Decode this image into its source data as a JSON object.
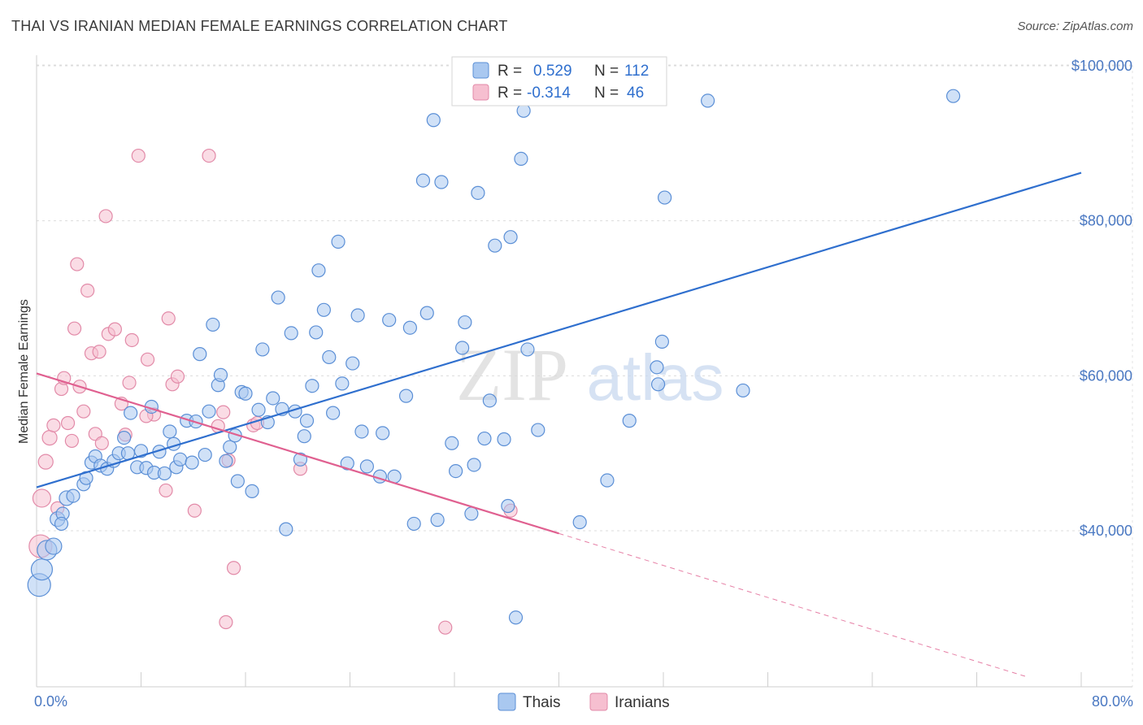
{
  "title": "THAI VS IRANIAN MEDIAN FEMALE EARNINGS CORRELATION CHART",
  "source": "Source: ZipAtlas.com",
  "watermark": {
    "part1": "ZIP",
    "part2": "atlas"
  },
  "colors": {
    "thai_fill": "#a9c8f0",
    "thai_stroke": "#5b8fd6",
    "thai_line": "#2f6fce",
    "iran_fill": "#f6bfd0",
    "iran_stroke": "#e28aa8",
    "iran_line": "#e06090",
    "axis_text": "#4a78c2"
  },
  "legend": {
    "rows": [
      {
        "r_label": "R =",
        "r_value": "0.529",
        "n_label": "N =",
        "n_value": "112",
        "series": "thai"
      },
      {
        "r_label": "R =",
        "r_value": "-0.314",
        "n_label": "N =",
        "n_value": "46",
        "series": "iran"
      }
    ]
  },
  "bottom_legend": {
    "thai": "Thais",
    "iran": "Iranians"
  },
  "chart_data": {
    "type": "scatter",
    "ylabel": "Median Female Earnings",
    "xlabel": "",
    "x_range": [
      0,
      80
    ],
    "y_range": [
      18000,
      103000
    ],
    "x_ticks": [
      {
        "value": 0,
        "label": "0.0%"
      },
      {
        "value": 80,
        "label": "80.0%"
      }
    ],
    "y_ticks": [
      {
        "value": 40000,
        "label": "$40,000"
      },
      {
        "value": 60000,
        "label": "$60,000"
      },
      {
        "value": 80000,
        "label": "$80,000"
      },
      {
        "value": 100000,
        "label": "$100,000"
      }
    ],
    "series": [
      {
        "name": "Thais",
        "key": "thai",
        "points": [
          [
            0.2,
            33000,
            14
          ],
          [
            0.4,
            35000,
            13
          ],
          [
            0.8,
            37500,
            12
          ],
          [
            1.3,
            38000,
            10
          ],
          [
            1.6,
            41500,
            9
          ],
          [
            2.0,
            42200,
            8
          ],
          [
            2.3,
            44200,
            9
          ],
          [
            2.8,
            44500,
            8
          ],
          [
            3.6,
            46000,
            8
          ],
          [
            3.8,
            46800,
            8
          ],
          [
            4.2,
            48800,
            8
          ],
          [
            4.5,
            49600,
            8
          ],
          [
            4.9,
            48400,
            8
          ],
          [
            5.4,
            48000,
            8
          ],
          [
            5.9,
            49000,
            8
          ],
          [
            6.3,
            50000,
            8
          ],
          [
            6.7,
            52000,
            8
          ],
          [
            7.0,
            50000,
            8
          ],
          [
            7.2,
            55200,
            8
          ],
          [
            7.7,
            48200,
            8
          ],
          [
            8.0,
            50300,
            8
          ],
          [
            8.4,
            48100,
            8
          ],
          [
            8.8,
            56000,
            8
          ],
          [
            9.0,
            47500,
            8
          ],
          [
            9.4,
            50200,
            8
          ],
          [
            9.8,
            47400,
            8
          ],
          [
            10.2,
            52800,
            8
          ],
          [
            10.5,
            51200,
            8
          ],
          [
            10.7,
            48200,
            8
          ],
          [
            11.0,
            49200,
            8
          ],
          [
            11.5,
            54200,
            8
          ],
          [
            11.9,
            48800,
            8
          ],
          [
            12.2,
            54100,
            8
          ],
          [
            12.5,
            62800,
            8
          ],
          [
            12.9,
            49800,
            8
          ],
          [
            13.2,
            55400,
            8
          ],
          [
            13.5,
            66600,
            8
          ],
          [
            13.9,
            58800,
            8
          ],
          [
            14.1,
            60100,
            8
          ],
          [
            14.5,
            49000,
            8
          ],
          [
            14.8,
            50800,
            8
          ],
          [
            15.2,
            52300,
            8
          ],
          [
            15.4,
            46400,
            8
          ],
          [
            15.7,
            57900,
            8
          ],
          [
            16.0,
            57700,
            8
          ],
          [
            16.5,
            45100,
            8
          ],
          [
            17.0,
            55600,
            8
          ],
          [
            17.3,
            63400,
            8
          ],
          [
            17.7,
            54000,
            8
          ],
          [
            18.1,
            57100,
            8
          ],
          [
            18.5,
            70100,
            8
          ],
          [
            18.8,
            55700,
            8
          ],
          [
            19.1,
            40200,
            8
          ],
          [
            19.5,
            65500,
            8
          ],
          [
            19.8,
            55400,
            8
          ],
          [
            20.2,
            49200,
            8
          ],
          [
            20.5,
            52200,
            8
          ],
          [
            20.7,
            54200,
            8
          ],
          [
            21.1,
            58700,
            8
          ],
          [
            21.4,
            65600,
            8
          ],
          [
            21.6,
            73600,
            8
          ],
          [
            22.0,
            68500,
            8
          ],
          [
            22.4,
            62400,
            8
          ],
          [
            22.7,
            55200,
            8
          ],
          [
            23.1,
            77300,
            8
          ],
          [
            23.4,
            59000,
            8
          ],
          [
            23.8,
            48700,
            8
          ],
          [
            24.2,
            61600,
            8
          ],
          [
            24.6,
            67800,
            8
          ],
          [
            24.9,
            52800,
            8
          ],
          [
            25.3,
            48300,
            8
          ],
          [
            26.3,
            47000,
            8
          ],
          [
            26.5,
            52600,
            8
          ],
          [
            27.0,
            67200,
            8
          ],
          [
            27.4,
            47000,
            8
          ],
          [
            28.3,
            57400,
            8
          ],
          [
            28.6,
            66200,
            8
          ],
          [
            28.9,
            40900,
            8
          ],
          [
            29.6,
            85200,
            8
          ],
          [
            29.9,
            68100,
            8
          ],
          [
            30.4,
            93000,
            8
          ],
          [
            30.7,
            41400,
            8
          ],
          [
            31.0,
            85000,
            8
          ],
          [
            31.8,
            51300,
            8
          ],
          [
            32.1,
            47700,
            8
          ],
          [
            32.6,
            63600,
            8
          ],
          [
            32.8,
            66900,
            8
          ],
          [
            33.3,
            42200,
            8
          ],
          [
            33.5,
            48500,
            8
          ],
          [
            33.8,
            83600,
            8
          ],
          [
            34.3,
            51900,
            8
          ],
          [
            34.7,
            56800,
            8
          ],
          [
            35.1,
            76800,
            8
          ],
          [
            35.8,
            51800,
            8
          ],
          [
            36.1,
            43200,
            8
          ],
          [
            36.3,
            77900,
            8
          ],
          [
            36.7,
            28800,
            8
          ],
          [
            37.1,
            88000,
            8
          ],
          [
            37.3,
            94200,
            8
          ],
          [
            37.6,
            63400,
            8
          ],
          [
            38.4,
            53000,
            8
          ],
          [
            41.6,
            41100,
            8
          ],
          [
            43.7,
            46500,
            8
          ],
          [
            45.4,
            54200,
            8
          ],
          [
            47.5,
            61100,
            8
          ],
          [
            47.9,
            64400,
            8
          ],
          [
            47.6,
            58900,
            8
          ],
          [
            48.1,
            83000,
            8
          ],
          [
            51.4,
            95500,
            8
          ],
          [
            54.1,
            58100,
            8
          ],
          [
            70.2,
            96100,
            8
          ],
          [
            1.9,
            40900,
            8
          ]
        ],
        "trend": {
          "x0": 0,
          "y0": 45600,
          "x1": 80,
          "y1": 86200,
          "dashed_from": null
        }
      },
      {
        "name": "Iranians",
        "key": "iran",
        "points": [
          [
            0.3,
            38000,
            14
          ],
          [
            0.4,
            44200,
            11
          ],
          [
            0.7,
            48900,
            9
          ],
          [
            1.0,
            52000,
            9
          ],
          [
            1.3,
            53600,
            8
          ],
          [
            1.6,
            42900,
            8
          ],
          [
            1.9,
            58300,
            8
          ],
          [
            2.1,
            59700,
            8
          ],
          [
            2.4,
            53900,
            8
          ],
          [
            2.7,
            51600,
            8
          ],
          [
            2.9,
            66100,
            8
          ],
          [
            3.1,
            74400,
            8
          ],
          [
            3.3,
            58600,
            8
          ],
          [
            3.6,
            55400,
            8
          ],
          [
            3.9,
            71000,
            8
          ],
          [
            4.2,
            62900,
            8
          ],
          [
            4.5,
            52500,
            8
          ],
          [
            4.8,
            63100,
            8
          ],
          [
            5.0,
            51300,
            8
          ],
          [
            5.3,
            80600,
            8
          ],
          [
            5.5,
            65400,
            8
          ],
          [
            6.0,
            66000,
            8
          ],
          [
            6.5,
            56400,
            8
          ],
          [
            6.8,
            52400,
            8
          ],
          [
            7.1,
            59100,
            8
          ],
          [
            7.3,
            64600,
            8
          ],
          [
            7.8,
            88400,
            8
          ],
          [
            8.5,
            62100,
            8
          ],
          [
            9.0,
            55000,
            8
          ],
          [
            9.9,
            45200,
            8
          ],
          [
            10.1,
            67400,
            8
          ],
          [
            10.4,
            58900,
            8
          ],
          [
            10.8,
            59900,
            8
          ],
          [
            12.1,
            42600,
            8
          ],
          [
            13.2,
            88400,
            8
          ],
          [
            13.9,
            53500,
            8
          ],
          [
            14.3,
            55300,
            8
          ],
          [
            14.5,
            28200,
            8
          ],
          [
            14.7,
            49100,
            8
          ],
          [
            15.1,
            35200,
            8
          ],
          [
            16.6,
            53600,
            8
          ],
          [
            16.9,
            53900,
            8
          ],
          [
            20.2,
            48000,
            8
          ],
          [
            31.3,
            27500,
            8
          ],
          [
            36.3,
            42600,
            8
          ],
          [
            8.4,
            54800,
            8
          ]
        ],
        "trend": {
          "x0": 0,
          "y0": 60300,
          "x1": 80,
          "y1": 19000,
          "dashed_from": 40
        }
      }
    ]
  }
}
